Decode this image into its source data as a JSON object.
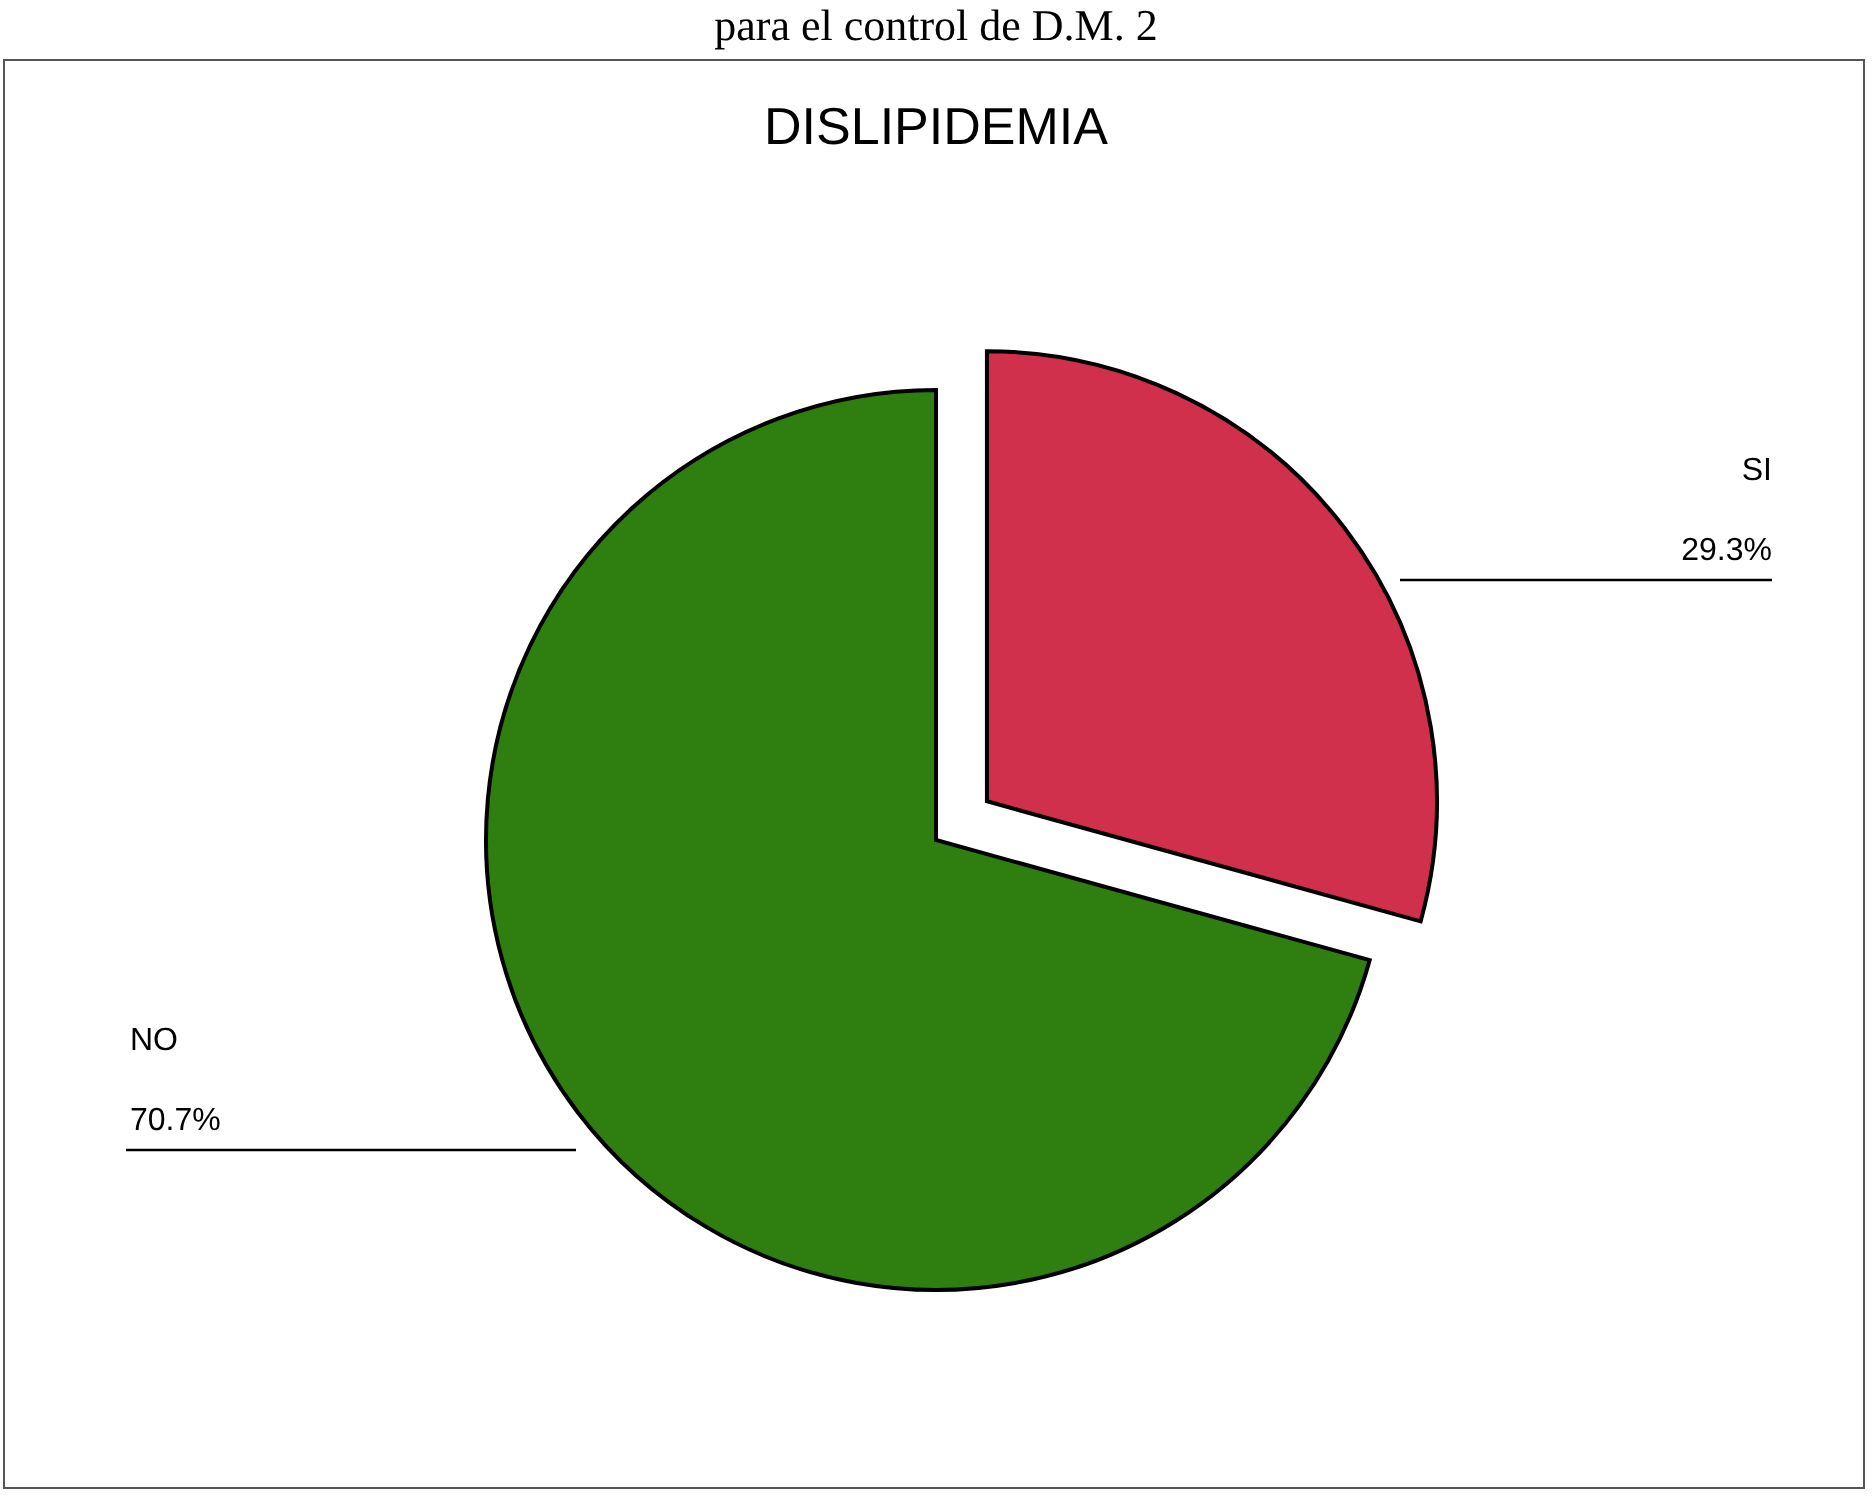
{
  "chart_data": {
    "type": "pie",
    "title": "DISLIPIDEMIA",
    "annotations": [
      "para el control de D.M. 2"
    ],
    "categories": [
      "SI",
      "NO"
    ],
    "values": [
      29.3,
      70.7
    ],
    "colors": [
      "#d1304c",
      "#2f7f10"
    ],
    "value_labels": [
      "29.3%",
      "70.7%"
    ],
    "legend": false
  }
}
